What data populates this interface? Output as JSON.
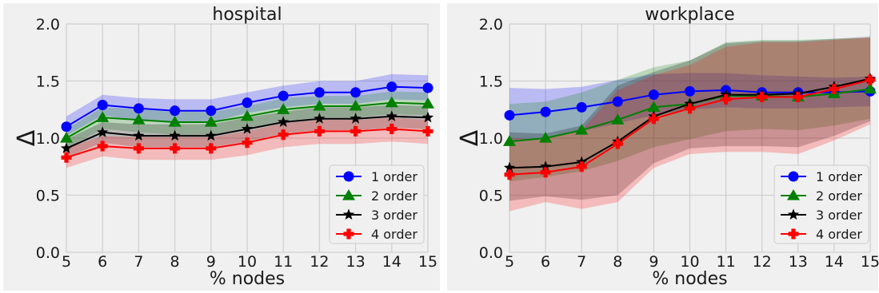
{
  "chart_data": [
    {
      "type": "line",
      "title": "hospital",
      "xlabel": "% nodes",
      "ylabel": "Δ",
      "x": [
        5,
        6,
        7,
        8,
        9,
        10,
        11,
        12,
        13,
        14,
        15
      ],
      "xlim": [
        5,
        15
      ],
      "ylim": [
        0,
        2
      ],
      "yticks": [
        "0.0",
        "0.5",
        "1.0",
        "1.5",
        "2.0"
      ],
      "grid": true,
      "legend": "bottom-right",
      "series": [
        {
          "name": "1 order",
          "color": "#0000ff",
          "marker": "circle",
          "values": [
            1.1,
            1.29,
            1.26,
            1.24,
            1.24,
            1.31,
            1.37,
            1.4,
            1.4,
            1.45,
            1.44
          ],
          "lower": [
            1.02,
            1.2,
            1.15,
            1.14,
            1.14,
            1.22,
            1.27,
            1.3,
            1.3,
            1.34,
            1.33
          ],
          "upper": [
            1.19,
            1.38,
            1.35,
            1.34,
            1.34,
            1.4,
            1.46,
            1.5,
            1.5,
            1.56,
            1.55
          ]
        },
        {
          "name": "2 order",
          "color": "#008000",
          "marker": "triangle",
          "values": [
            1.0,
            1.18,
            1.16,
            1.14,
            1.14,
            1.19,
            1.25,
            1.28,
            1.28,
            1.31,
            1.3
          ],
          "lower": [
            0.91,
            1.08,
            1.05,
            1.03,
            1.03,
            1.09,
            1.15,
            1.18,
            1.18,
            1.21,
            1.2
          ],
          "upper": [
            1.08,
            1.27,
            1.25,
            1.23,
            1.23,
            1.28,
            1.35,
            1.37,
            1.37,
            1.41,
            1.4
          ]
        },
        {
          "name": "3 order",
          "color": "#000000",
          "marker": "star",
          "values": [
            0.91,
            1.05,
            1.02,
            1.02,
            1.02,
            1.08,
            1.14,
            1.17,
            1.17,
            1.19,
            1.18
          ],
          "lower": [
            0.83,
            0.96,
            0.92,
            0.92,
            0.92,
            0.97,
            1.04,
            1.07,
            1.07,
            1.09,
            1.08
          ],
          "upper": [
            0.99,
            1.14,
            1.12,
            1.12,
            1.12,
            1.18,
            1.23,
            1.27,
            1.27,
            1.29,
            1.28
          ]
        },
        {
          "name": "4 order",
          "color": "#ff0000",
          "marker": "plus",
          "values": [
            0.83,
            0.93,
            0.91,
            0.91,
            0.91,
            0.96,
            1.03,
            1.06,
            1.06,
            1.08,
            1.06
          ],
          "lower": [
            0.74,
            0.84,
            0.81,
            0.81,
            0.81,
            0.85,
            0.92,
            0.95,
            0.95,
            0.97,
            0.95
          ],
          "upper": [
            0.91,
            1.02,
            1.01,
            1.01,
            1.01,
            1.06,
            1.13,
            1.16,
            1.16,
            1.18,
            1.16
          ]
        }
      ]
    },
    {
      "type": "line",
      "title": "workplace",
      "xlabel": "% nodes",
      "ylabel": "Δ",
      "x": [
        5,
        6,
        7,
        8,
        9,
        10,
        11,
        12,
        13,
        14,
        15
      ],
      "xlim": [
        5,
        15
      ],
      "ylim": [
        0,
        2
      ],
      "yticks": [
        "0.0",
        "0.5",
        "1.0",
        "1.5",
        "2.0"
      ],
      "grid": true,
      "legend": "bottom-right",
      "series": [
        {
          "name": "1 order",
          "color": "#0000ff",
          "marker": "circle",
          "values": [
            1.2,
            1.23,
            1.27,
            1.32,
            1.38,
            1.41,
            1.42,
            1.4,
            1.4,
            1.4,
            1.41
          ],
          "lower": [
            0.97,
            1.01,
            1.06,
            1.13,
            1.2,
            1.25,
            1.27,
            1.26,
            1.26,
            1.27,
            1.28
          ],
          "upper": [
            1.44,
            1.43,
            1.45,
            1.51,
            1.56,
            1.57,
            1.57,
            1.55,
            1.54,
            1.53,
            1.54
          ]
        },
        {
          "name": "2 order",
          "color": "#008000",
          "marker": "triangle",
          "values": [
            0.97,
            1.0,
            1.07,
            1.16,
            1.27,
            1.3,
            1.37,
            1.37,
            1.36,
            1.39,
            1.43
          ],
          "lower": [
            0.62,
            0.66,
            0.71,
            0.8,
            0.92,
            0.99,
            1.06,
            1.08,
            1.07,
            1.11,
            1.17
          ],
          "upper": [
            1.3,
            1.32,
            1.4,
            1.51,
            1.62,
            1.68,
            1.84,
            1.86,
            1.86,
            1.87,
            1.88
          ]
        },
        {
          "name": "3 order",
          "color": "#000000",
          "marker": "star",
          "values": [
            0.74,
            0.75,
            0.79,
            0.97,
            1.19,
            1.3,
            1.38,
            1.38,
            1.39,
            1.45,
            1.52
          ],
          "lower": [
            0.45,
            0.49,
            0.46,
            0.5,
            0.78,
            0.91,
            0.93,
            0.93,
            0.92,
            1.02,
            1.15
          ],
          "upper": [
            1.05,
            1.04,
            1.11,
            1.46,
            1.58,
            1.68,
            1.83,
            1.85,
            1.85,
            1.87,
            1.89
          ]
        },
        {
          "name": "4 order",
          "color": "#ff0000",
          "marker": "plus",
          "values": [
            0.68,
            0.7,
            0.75,
            0.95,
            1.17,
            1.26,
            1.34,
            1.36,
            1.36,
            1.43,
            1.51
          ],
          "lower": [
            0.36,
            0.44,
            0.38,
            0.44,
            0.74,
            0.86,
            0.88,
            0.88,
            0.86,
            0.98,
            1.12
          ],
          "upper": [
            1.0,
            0.99,
            1.07,
            1.42,
            1.55,
            1.64,
            1.8,
            1.84,
            1.84,
            1.86,
            1.88
          ]
        }
      ]
    }
  ]
}
